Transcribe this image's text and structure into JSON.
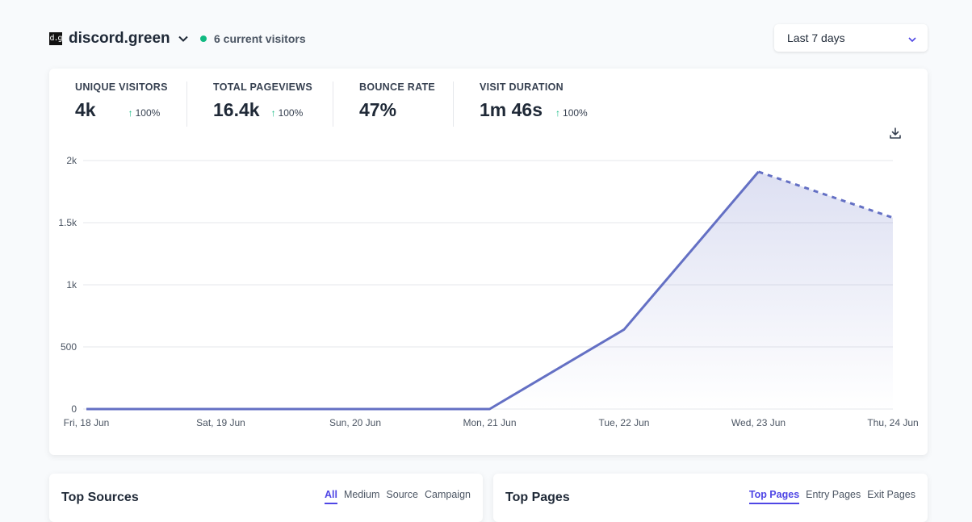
{
  "header": {
    "favicon_text": "d.g",
    "site_name": "discord.green",
    "current_visitors": "6 current visitors",
    "period_label": "Last 7 days"
  },
  "stats": [
    {
      "label": "UNIQUE VISITORS",
      "value": "4k",
      "change": "100%"
    },
    {
      "label": "TOTAL PAGEVIEWS",
      "value": "16.4k",
      "change": "100%"
    },
    {
      "label": "BOUNCE RATE",
      "value": "47%",
      "change": ""
    },
    {
      "label": "VISIT DURATION",
      "value": "1m 46s",
      "change": "100%"
    }
  ],
  "chart_data": {
    "type": "area",
    "categories": [
      "Fri, 18 Jun",
      "Sat, 19 Jun",
      "Sun, 20 Jun",
      "Mon, 21 Jun",
      "Tue, 22 Jun",
      "Wed, 23 Jun",
      "Thu, 24 Jun"
    ],
    "series": [
      {
        "values": [
          0,
          0,
          0,
          0,
          640,
          1910,
          1540
        ],
        "partial_from_index": 5
      }
    ],
    "yticks": [
      "0",
      "500",
      "1k",
      "1.5k",
      "2k"
    ],
    "ylim": [
      0,
      2000
    ],
    "grid": true,
    "colors": {
      "line": "#6470c4",
      "fill": "#6470c4",
      "grid": "#e5e7eb",
      "tick": "#4b5563"
    }
  },
  "bottom": {
    "sources": {
      "title": "Top Sources",
      "tabs": [
        "All",
        "Medium",
        "Source",
        "Campaign"
      ],
      "active": 0
    },
    "pages": {
      "title": "Top Pages",
      "tabs": [
        "Top Pages",
        "Entry Pages",
        "Exit Pages"
      ],
      "active": 0
    }
  }
}
